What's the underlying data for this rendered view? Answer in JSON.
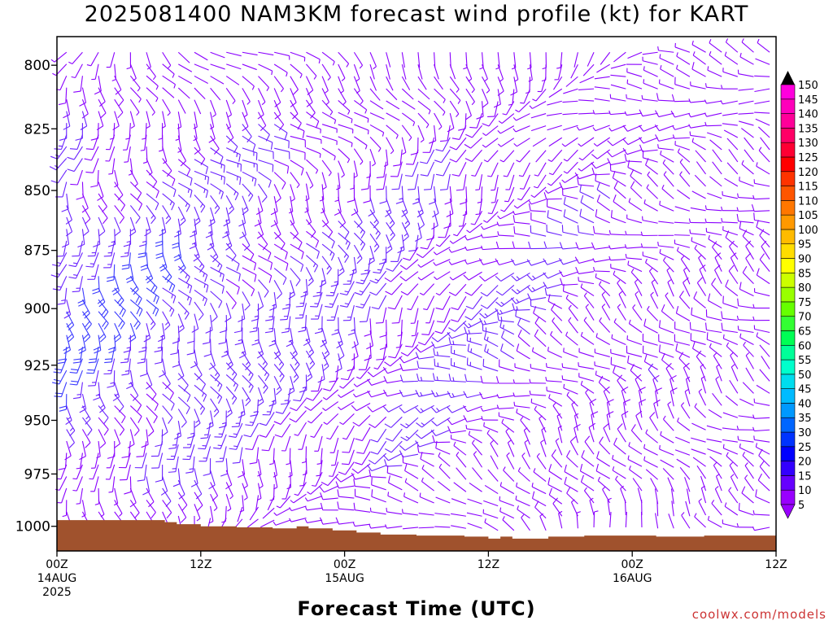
{
  "title": "2025081400 NAM3KM forecast wind profile (kt) for KART",
  "credit": "coolwx.com/models",
  "chart_data": {
    "type": "wind_profile",
    "title": "2025081400 NAM3KM forecast wind profile (kt) for KART",
    "xlabel": "Forecast Time (UTC)",
    "ylabel": "",
    "y_axis": {
      "scale": "pressure_hPa",
      "inverted": true,
      "range": [
        1012,
        789
      ],
      "ticks": [
        800,
        825,
        850,
        875,
        900,
        925,
        950,
        975,
        1000
      ]
    },
    "x_axis": {
      "range_hours": [
        0,
        60
      ],
      "ticks": [
        {
          "hour": 0,
          "lines": [
            "00Z",
            "14AUG",
            "2025"
          ]
        },
        {
          "hour": 12,
          "lines": [
            "12Z"
          ]
        },
        {
          "hour": 24,
          "lines": [
            "00Z",
            "15AUG"
          ]
        },
        {
          "hour": 36,
          "lines": [
            "12Z"
          ]
        },
        {
          "hour": 48,
          "lines": [
            "00Z",
            "16AUG"
          ]
        },
        {
          "hour": 60,
          "lines": [
            "12Z"
          ]
        }
      ]
    },
    "colorbar": {
      "units": "kt",
      "levels": [
        5,
        10,
        15,
        20,
        25,
        30,
        35,
        40,
        45,
        50,
        55,
        60,
        65,
        70,
        75,
        80,
        85,
        90,
        95,
        100,
        105,
        110,
        115,
        120,
        125,
        130,
        135,
        140,
        145,
        150
      ],
      "colors": [
        "#9900ff",
        "#6600ff",
        "#3300ff",
        "#0000ff",
        "#0033ff",
        "#0066ff",
        "#0099ff",
        "#00bbff",
        "#00ddee",
        "#00ffcc",
        "#00ff99",
        "#00ff55",
        "#33ff33",
        "#66ff00",
        "#99ff00",
        "#ccff00",
        "#ffff00",
        "#ffdd00",
        "#ffbb00",
        "#ff9900",
        "#ff7700",
        "#ff5500",
        "#ff3300",
        "#ff0000",
        "#ff0033",
        "#ff0066",
        "#ff0099",
        "#ff00bb",
        "#ff00dd",
        "#ff00ff"
      ]
    },
    "terrain_color": "#a0522d",
    "terrain_surface_pressure": [
      {
        "hour": 0,
        "p": 997
      },
      {
        "hour": 8,
        "p": 997
      },
      {
        "hour": 9,
        "p": 998
      },
      {
        "hour": 10,
        "p": 999
      },
      {
        "hour": 12,
        "p": 1000
      },
      {
        "hour": 15,
        "p": 1000.5
      },
      {
        "hour": 18,
        "p": 1001
      },
      {
        "hour": 20,
        "p": 1000
      },
      {
        "hour": 21,
        "p": 1001
      },
      {
        "hour": 23,
        "p": 1002
      },
      {
        "hour": 25,
        "p": 1003
      },
      {
        "hour": 27,
        "p": 1004
      },
      {
        "hour": 30,
        "p": 1004.5
      },
      {
        "hour": 34,
        "p": 1005
      },
      {
        "hour": 36,
        "p": 1006
      },
      {
        "hour": 37,
        "p": 1005
      },
      {
        "hour": 38,
        "p": 1006
      },
      {
        "hour": 41,
        "p": 1005
      },
      {
        "hour": 44,
        "p": 1004.5
      },
      {
        "hour": 47,
        "p": 1004.5
      },
      {
        "hour": 49,
        "p": 1004.5
      },
      {
        "hour": 50,
        "p": 1005
      },
      {
        "hour": 52,
        "p": 1005
      },
      {
        "hour": 54,
        "p": 1004.5
      },
      {
        "hour": 60,
        "p": 1004.5
      }
    ]
  }
}
